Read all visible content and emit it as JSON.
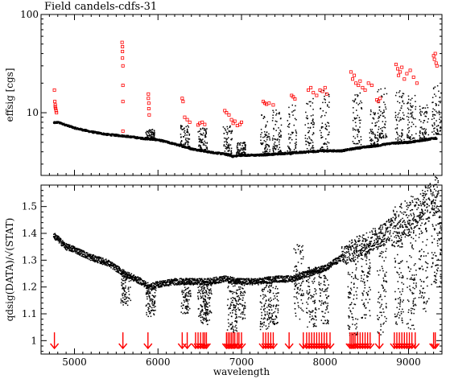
{
  "chart_data": [
    {
      "type": "scatter",
      "title": "Field candels-cdfs-31",
      "xlabel": "",
      "ylabel": "effsig [cgs]",
      "yscale": "log",
      "xlim": [
        4600,
        9400
      ],
      "ylim": [
        2.3,
        100
      ],
      "ytick_labels": [
        "10",
        "100"
      ],
      "grid": false,
      "series": [
        {
          "color": "#000000",
          "marker": "dot",
          "continuum": [
            [
              4750,
              7.9
            ],
            [
              4800,
              8.0
            ],
            [
              5000,
              7.0
            ],
            [
              5200,
              6.4
            ],
            [
              5400,
              6.0
            ],
            [
              5600,
              5.8
            ],
            [
              5800,
              5.5
            ],
            [
              6000,
              5.3
            ],
            [
              6200,
              4.8
            ],
            [
              6400,
              4.3
            ],
            [
              6600,
              4.0
            ],
            [
              6800,
              3.8
            ],
            [
              6900,
              3.6
            ],
            [
              7000,
              3.7
            ],
            [
              7200,
              3.7
            ],
            [
              7400,
              3.8
            ],
            [
              7600,
              3.9
            ],
            [
              7800,
              4.0
            ],
            [
              8000,
              4.1
            ],
            [
              8200,
              4.1
            ],
            [
              8400,
              4.4
            ],
            [
              8600,
              4.6
            ],
            [
              8800,
              4.9
            ],
            [
              9000,
              5.0
            ],
            [
              9200,
              5.3
            ],
            [
              9300,
              5.5
            ]
          ],
          "scatter_bands": [
            [
              5870,
              5.5,
              6.8
            ],
            [
              6290,
              4.5,
              7.5
            ],
            [
              6500,
              4.2,
              7.0
            ],
            [
              6800,
              3.8,
              7.5
            ],
            [
              6960,
              3.8,
              5.0
            ],
            [
              7250,
              3.8,
              9.8
            ],
            [
              7390,
              4.0,
              11.0
            ],
            [
              7570,
              3.7,
              12.5
            ],
            [
              7780,
              4.0,
              14.0
            ],
            [
              7960,
              4.0,
              17.0
            ],
            [
              8350,
              4.2,
              16.0
            ],
            [
              8550,
              4.5,
              11.0
            ],
            [
              8650,
              5.5,
              18.0
            ],
            [
              8860,
              5.0,
              17.0
            ],
            [
              9000,
              5.0,
              15.0
            ],
            [
              9150,
              5.2,
              12.0
            ],
            [
              9300,
              6.0,
              20.0
            ]
          ]
        },
        {
          "color": "#ff0000",
          "marker": "open-square",
          "points": [
            [
              4760,
              17
            ],
            [
              4765,
              13
            ],
            [
              4770,
              12
            ],
            [
              4770,
              11.5
            ],
            [
              4775,
              11
            ],
            [
              4780,
              10.5
            ],
            [
              4785,
              10
            ],
            [
              5570,
              52
            ],
            [
              5575,
              47
            ],
            [
              5575,
              42
            ],
            [
              5575,
              36
            ],
            [
              5580,
              30
            ],
            [
              5580,
              19
            ],
            [
              5580,
              13
            ],
            [
              5580,
              6.5
            ],
            [
              5885,
              15.5
            ],
            [
              5885,
              14
            ],
            [
              5890,
              12.5
            ],
            [
              5890,
              11
            ],
            [
              5895,
              9.5
            ],
            [
              6290,
              14
            ],
            [
              6300,
              13
            ],
            [
              6320,
              9
            ],
            [
              6350,
              8.5
            ],
            [
              6380,
              8
            ],
            [
              6480,
              7.5
            ],
            [
              6500,
              7.8
            ],
            [
              6530,
              8
            ],
            [
              6560,
              7.6
            ],
            [
              6800,
              10.5
            ],
            [
              6820,
              10
            ],
            [
              6850,
              9.5
            ],
            [
              6880,
              8.5
            ],
            [
              6900,
              7.8
            ],
            [
              6920,
              8.2
            ],
            [
              6950,
              7.4
            ],
            [
              6980,
              7.6
            ],
            [
              7000,
              8
            ],
            [
              7260,
              13
            ],
            [
              7280,
              12.5
            ],
            [
              7300,
              12.2
            ],
            [
              7330,
              12.5
            ],
            [
              7380,
              12
            ],
            [
              7600,
              15
            ],
            [
              7620,
              14.5
            ],
            [
              7640,
              13.8
            ],
            [
              7800,
              17
            ],
            [
              7830,
              18
            ],
            [
              7860,
              16
            ],
            [
              7900,
              15
            ],
            [
              7940,
              17
            ],
            [
              7970,
              16.5
            ],
            [
              8000,
              18
            ],
            [
              8020,
              15.5
            ],
            [
              8310,
              26
            ],
            [
              8330,
              22
            ],
            [
              8350,
              24
            ],
            [
              8370,
              20
            ],
            [
              8400,
              19
            ],
            [
              8420,
              21
            ],
            [
              8450,
              18
            ],
            [
              8480,
              17
            ],
            [
              8520,
              20
            ],
            [
              8560,
              19
            ],
            [
              8620,
              13.5
            ],
            [
              8640,
              13
            ],
            [
              8660,
              14
            ],
            [
              8850,
              31
            ],
            [
              8870,
              28
            ],
            [
              8880,
              24
            ],
            [
              8900,
              26
            ],
            [
              8920,
              29
            ],
            [
              8950,
              22
            ],
            [
              8980,
              25
            ],
            [
              9020,
              27
            ],
            [
              9060,
              23
            ],
            [
              9100,
              20
            ],
            [
              9300,
              38
            ],
            [
              9310,
              35
            ],
            [
              9320,
              40
            ],
            [
              9330,
              32
            ],
            [
              9340,
              30
            ]
          ]
        }
      ]
    },
    {
      "type": "scatter",
      "xlabel": "wavelength",
      "ylabel": "qdsig(DATA)/√(STAT)",
      "xlim": [
        4600,
        9400
      ],
      "ylim": [
        0.95,
        1.58
      ],
      "xtick_labels": [
        "5000",
        "6000",
        "7000",
        "8000",
        "9000"
      ],
      "ytick_labels": [
        "1",
        "1.1",
        "1.2",
        "1.3",
        "1.4",
        "1.5"
      ],
      "grid": false,
      "series": [
        {
          "color": "#000000",
          "marker": "dot",
          "trend": [
            [
              4760,
              1.39
            ],
            [
              4800,
              1.38
            ],
            [
              4900,
              1.35
            ],
            [
              5000,
              1.34
            ],
            [
              5200,
              1.31
            ],
            [
              5400,
              1.29
            ],
            [
              5600,
              1.25
            ],
            [
              5800,
              1.22
            ],
            [
              5900,
              1.2
            ],
            [
              6000,
              1.21
            ],
            [
              6200,
              1.22
            ],
            [
              6400,
              1.22
            ],
            [
              6600,
              1.22
            ],
            [
              6800,
              1.23
            ],
            [
              7000,
              1.22
            ],
            [
              7200,
              1.22
            ],
            [
              7400,
              1.23
            ],
            [
              7600,
              1.23
            ],
            [
              7800,
              1.25
            ],
            [
              8000,
              1.27
            ],
            [
              8200,
              1.31
            ],
            [
              8400,
              1.35
            ],
            [
              8600,
              1.38
            ],
            [
              8800,
              1.42
            ],
            [
              9000,
              1.46
            ],
            [
              9200,
              1.5
            ],
            [
              9350,
              1.55
            ]
          ],
          "scatter_bands": [
            [
              5580,
              1.13,
              1.25
            ],
            [
              5880,
              1.09,
              1.2
            ],
            [
              6300,
              1.1,
              1.22
            ],
            [
              6500,
              1.06,
              1.22
            ],
            [
              6550,
              1.07,
              1.22
            ],
            [
              6850,
              1.03,
              1.23
            ],
            [
              6950,
              1.08,
              1.23
            ],
            [
              7250,
              1.04,
              1.22
            ],
            [
              7350,
              1.06,
              1.23
            ],
            [
              7650,
              1.08,
              1.36
            ],
            [
              7800,
              1.05,
              1.28
            ],
            [
              7950,
              1.06,
              1.28
            ],
            [
              8300,
              1.02,
              1.34
            ],
            [
              8450,
              1.08,
              1.36
            ],
            [
              8650,
              1.02,
              1.38
            ],
            [
              8850,
              1.06,
              1.45
            ],
            [
              9000,
              1.04,
              1.45
            ],
            [
              9150,
              1.1,
              1.52
            ],
            [
              9300,
              1.2,
              1.55
            ]
          ]
        }
      ],
      "annotations": {
        "type": "arrows",
        "color": "#ff0000",
        "x": [
          4760,
          5580,
          5880,
          6290,
          6350,
          6450,
          6480,
          6510,
          6540,
          6560,
          6580,
          6820,
          6840,
          6860,
          6880,
          6900,
          6920,
          6950,
          6970,
          7000,
          7260,
          7290,
          7320,
          7350,
          7380,
          7570,
          7740,
          7780,
          7810,
          7840,
          7870,
          7900,
          7930,
          7960,
          7990,
          8020,
          8060,
          8300,
          8320,
          8340,
          8360,
          8390,
          8420,
          8450,
          8480,
          8510,
          8540,
          8650,
          8830,
          8860,
          8890,
          8920,
          8950,
          8980,
          9010,
          9040,
          9080,
          9300,
          9320
        ]
      }
    }
  ]
}
